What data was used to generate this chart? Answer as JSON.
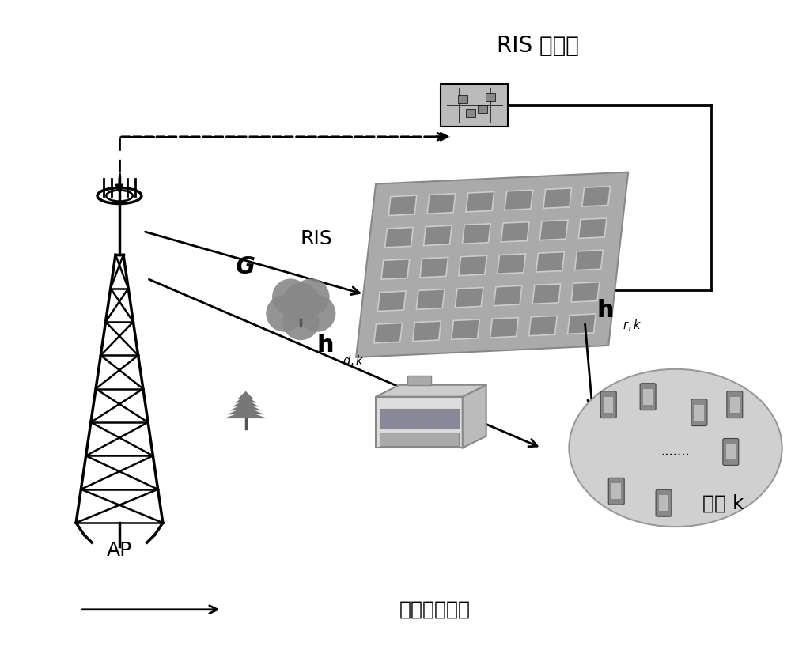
{
  "bg_color": "#ffffff",
  "ris_controller_label": "RIS 控制器",
  "ris_label": "RIS",
  "ap_label": "AP",
  "G_label": "G",
  "user_label": "用户 k",
  "flow_label": "信息和能量流",
  "dots_label": ".......",
  "font_size_title": 20,
  "font_size_label": 18,
  "font_size_sub": 14,
  "font_size_small": 13,
  "ris_panel_bg": "#999999",
  "ris_cell_face": "#aaaaaa",
  "ris_cell_border": "#ffffff",
  "user_ellipse_face": "#d0d0d0",
  "user_ellipse_edge": "#999999"
}
